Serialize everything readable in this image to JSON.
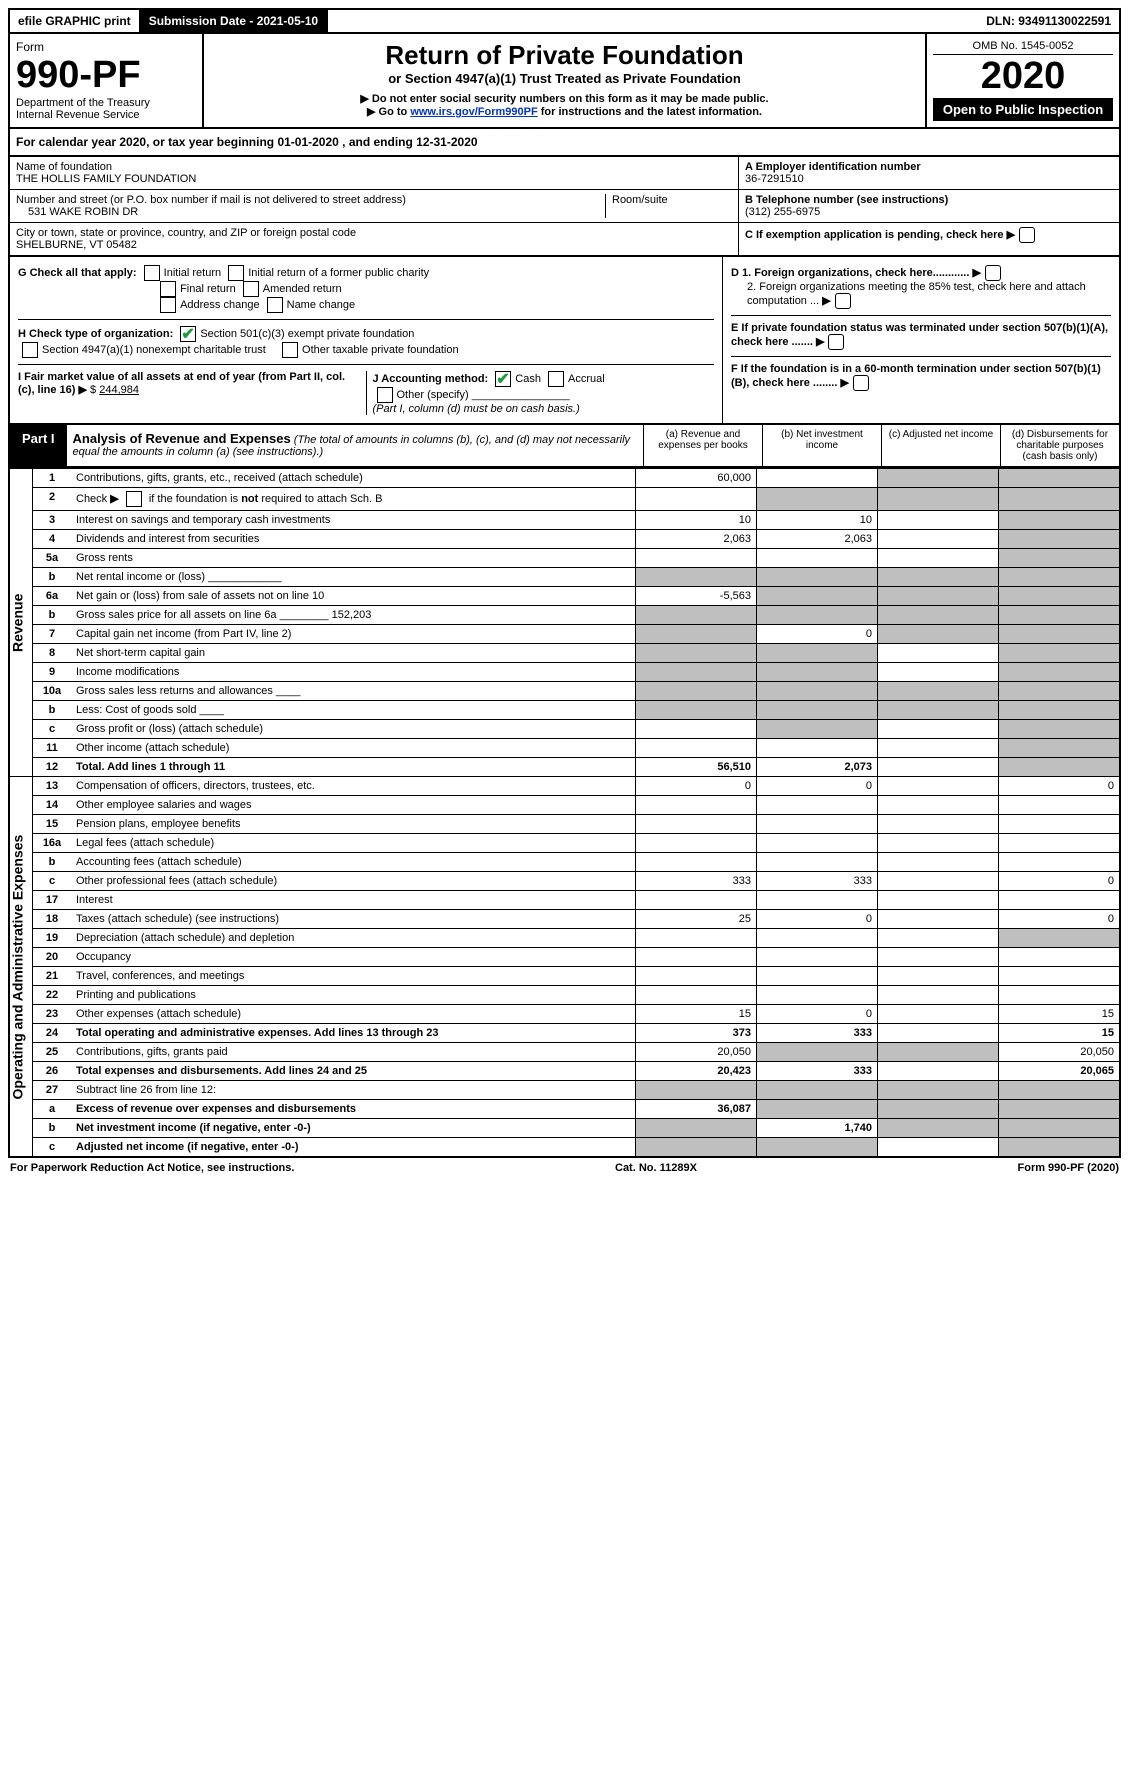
{
  "topbar": {
    "efile": "efile GRAPHIC print",
    "submission": "Submission Date - 2021-05-10",
    "dln": "DLN: 93491130022591"
  },
  "header": {
    "form_word": "Form",
    "form_number": "990-PF",
    "dept": "Department of the Treasury",
    "irs": "Internal Revenue Service",
    "title": "Return of Private Foundation",
    "subtitle": "or Section 4947(a)(1) Trust Treated as Private Foundation",
    "note1": "▶ Do not enter social security numbers on this form as it may be made public.",
    "note2_prefix": "▶ Go to ",
    "note2_link": "www.irs.gov/Form990PF",
    "note2_suffix": " for instructions and the latest information.",
    "omb": "OMB No. 1545-0052",
    "year": "2020",
    "open": "Open to Public Inspection"
  },
  "calendar": "For calendar year 2020, or tax year beginning 01-01-2020                           , and ending 12-31-2020",
  "info": {
    "name_label": "Name of foundation",
    "name": "THE HOLLIS FAMILY FOUNDATION",
    "addr_label": "Number and street (or P.O. box number if mail is not delivered to street address)",
    "addr": "531 WAKE ROBIN DR",
    "room_label": "Room/suite",
    "city_label": "City or town, state or province, country, and ZIP or foreign postal code",
    "city": "SHELBURNE, VT  05482",
    "ein_label": "A Employer identification number",
    "ein": "36-7291510",
    "phone_label": "B Telephone number (see instructions)",
    "phone": "(312) 255-6975",
    "c_label": "C If exemption application is pending, check here",
    "d1": "D 1. Foreign organizations, check here............",
    "d2": "2. Foreign organizations meeting the 85% test, check here and attach computation ...",
    "e_label": "E  If private foundation status was terminated under section 507(b)(1)(A), check here .......",
    "f_label": "F  If the foundation is in a 60-month termination under section 507(b)(1)(B), check here ........"
  },
  "g": {
    "label": "G Check all that apply:",
    "opts": [
      "Initial return",
      "Initial return of a former public charity",
      "Final return",
      "Amended return",
      "Address change",
      "Name change"
    ]
  },
  "h": {
    "label": "H Check type of organization:",
    "opt1": "Section 501(c)(3) exempt private foundation",
    "opt2": "Section 4947(a)(1) nonexempt charitable trust",
    "opt3": "Other taxable private foundation"
  },
  "i": {
    "label": "I Fair market value of all assets at end of year (from Part II, col. (c), line 16)",
    "value": "244,984"
  },
  "j": {
    "label": "J Accounting method:",
    "cash": "Cash",
    "accrual": "Accrual",
    "other": "Other (specify)",
    "note": "(Part I, column (d) must be on cash basis.)"
  },
  "part1": {
    "label": "Part I",
    "title": "Analysis of Revenue and Expenses",
    "note": "(The total of amounts in columns (b), (c), and (d) may not necessarily equal the amounts in column (a) (see instructions).)",
    "col_a": "(a)   Revenue and expenses per books",
    "col_b": "(b)  Net investment income",
    "col_c": "(c)  Adjusted net income",
    "col_d": "(d)  Disbursements for charitable purposes (cash basis only)"
  },
  "side": {
    "revenue": "Revenue",
    "expenses": "Operating and Administrative Expenses"
  },
  "rows": [
    {
      "n": "1",
      "d": "Contributions, gifts, grants, etc., received (attach schedule)",
      "a": "60,000",
      "b": "",
      "c": "s",
      "dd": "s"
    },
    {
      "n": "2",
      "d": "Check ▶ ☐ if the foundation is not required to attach Sch. B",
      "a": "",
      "b": "s",
      "c": "s",
      "dd": "s",
      "html": true
    },
    {
      "n": "3",
      "d": "Interest on savings and temporary cash investments",
      "a": "10",
      "b": "10",
      "c": "",
      "dd": "s"
    },
    {
      "n": "4",
      "d": "Dividends and interest from securities",
      "a": "2,063",
      "b": "2,063",
      "c": "",
      "dd": "s"
    },
    {
      "n": "5a",
      "d": "Gross rents",
      "a": "",
      "b": "",
      "c": "",
      "dd": "s"
    },
    {
      "n": "b",
      "d": "Net rental income or (loss)  ____________",
      "a": "s",
      "b": "s",
      "c": "s",
      "dd": "s"
    },
    {
      "n": "6a",
      "d": "Net gain or (loss) from sale of assets not on line 10",
      "a": "-5,563",
      "b": "s",
      "c": "s",
      "dd": "s"
    },
    {
      "n": "b",
      "d": "Gross sales price for all assets on line 6a ________ 152,203",
      "a": "s",
      "b": "s",
      "c": "s",
      "dd": "s"
    },
    {
      "n": "7",
      "d": "Capital gain net income (from Part IV, line 2)",
      "a": "s",
      "b": "0",
      "c": "s",
      "dd": "s"
    },
    {
      "n": "8",
      "d": "Net short-term capital gain",
      "a": "s",
      "b": "s",
      "c": "",
      "dd": "s"
    },
    {
      "n": "9",
      "d": "Income modifications",
      "a": "s",
      "b": "s",
      "c": "",
      "dd": "s"
    },
    {
      "n": "10a",
      "d": "Gross sales less returns and allowances  ____",
      "a": "s",
      "b": "s",
      "c": "s",
      "dd": "s"
    },
    {
      "n": "b",
      "d": "Less: Cost of goods sold      ____",
      "a": "s",
      "b": "s",
      "c": "s",
      "dd": "s"
    },
    {
      "n": "c",
      "d": "Gross profit or (loss) (attach schedule)",
      "a": "",
      "b": "s",
      "c": "",
      "dd": "s"
    },
    {
      "n": "11",
      "d": "Other income (attach schedule)",
      "a": "",
      "b": "",
      "c": "",
      "dd": "s"
    },
    {
      "n": "12",
      "d": "Total. Add lines 1 through 11",
      "a": "56,510",
      "b": "2,073",
      "c": "",
      "dd": "s",
      "bold": true
    },
    {
      "n": "13",
      "d": "Compensation of officers, directors, trustees, etc.",
      "a": "0",
      "b": "0",
      "c": "",
      "dd": "0"
    },
    {
      "n": "14",
      "d": "Other employee salaries and wages",
      "a": "",
      "b": "",
      "c": "",
      "dd": ""
    },
    {
      "n": "15",
      "d": "Pension plans, employee benefits",
      "a": "",
      "b": "",
      "c": "",
      "dd": ""
    },
    {
      "n": "16a",
      "d": "Legal fees (attach schedule)",
      "a": "",
      "b": "",
      "c": "",
      "dd": ""
    },
    {
      "n": "b",
      "d": "Accounting fees (attach schedule)",
      "a": "",
      "b": "",
      "c": "",
      "dd": ""
    },
    {
      "n": "c",
      "d": "Other professional fees (attach schedule)",
      "a": "333",
      "b": "333",
      "c": "",
      "dd": "0"
    },
    {
      "n": "17",
      "d": "Interest",
      "a": "",
      "b": "",
      "c": "",
      "dd": ""
    },
    {
      "n": "18",
      "d": "Taxes (attach schedule) (see instructions)",
      "a": "25",
      "b": "0",
      "c": "",
      "dd": "0"
    },
    {
      "n": "19",
      "d": "Depreciation (attach schedule) and depletion",
      "a": "",
      "b": "",
      "c": "",
      "dd": "s"
    },
    {
      "n": "20",
      "d": "Occupancy",
      "a": "",
      "b": "",
      "c": "",
      "dd": ""
    },
    {
      "n": "21",
      "d": "Travel, conferences, and meetings",
      "a": "",
      "b": "",
      "c": "",
      "dd": ""
    },
    {
      "n": "22",
      "d": "Printing and publications",
      "a": "",
      "b": "",
      "c": "",
      "dd": ""
    },
    {
      "n": "23",
      "d": "Other expenses (attach schedule)",
      "a": "15",
      "b": "0",
      "c": "",
      "dd": "15"
    },
    {
      "n": "24",
      "d": "Total operating and administrative expenses. Add lines 13 through 23",
      "a": "373",
      "b": "333",
      "c": "",
      "dd": "15",
      "bold": true
    },
    {
      "n": "25",
      "d": "Contributions, gifts, grants paid",
      "a": "20,050",
      "b": "s",
      "c": "s",
      "dd": "20,050"
    },
    {
      "n": "26",
      "d": "Total expenses and disbursements. Add lines 24 and 25",
      "a": "20,423",
      "b": "333",
      "c": "",
      "dd": "20,065",
      "bold": true
    },
    {
      "n": "27",
      "d": "Subtract line 26 from line 12:",
      "a": "s",
      "b": "s",
      "c": "s",
      "dd": "s"
    },
    {
      "n": "a",
      "d": "Excess of revenue over expenses and disbursements",
      "a": "36,087",
      "b": "s",
      "c": "s",
      "dd": "s",
      "bold": true
    },
    {
      "n": "b",
      "d": "Net investment income (if negative, enter -0-)",
      "a": "s",
      "b": "1,740",
      "c": "s",
      "dd": "s",
      "bold": true
    },
    {
      "n": "c",
      "d": "Adjusted net income (if negative, enter -0-)",
      "a": "s",
      "b": "s",
      "c": "",
      "dd": "s",
      "bold": true
    }
  ],
  "footer": {
    "left": "For Paperwork Reduction Act Notice, see instructions.",
    "mid": "Cat. No. 11289X",
    "right": "Form 990-PF (2020)"
  }
}
